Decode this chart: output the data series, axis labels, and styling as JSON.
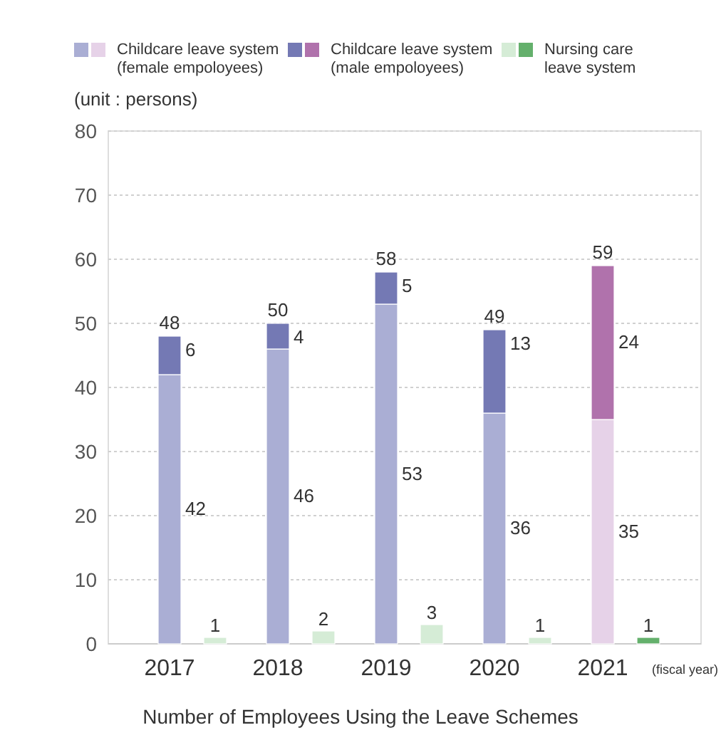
{
  "chart_data": {
    "type": "bar",
    "title": "Number of Employees Using the Leave Schemes",
    "ylabel": "(unit : persons)",
    "xlabel": "(fiscal year)",
    "categories": [
      "2017",
      null,
      "2018",
      null,
      "2019",
      null,
      "2020",
      null,
      "2021",
      null
    ],
    "stacked": true,
    "series": [
      {
        "name": "Childcare leave system\n(female empoloyees)",
        "colors": [
          "#aaaed4",
          null,
          "#aaaed4",
          null,
          "#aaaed4",
          null,
          "#aaaed4",
          null,
          "#e6d2e8",
          null
        ],
        "values": [
          42,
          null,
          46,
          null,
          53,
          null,
          36,
          null,
          35,
          null
        ]
      },
      {
        "name": "Childcare leave system\n(male empoloyees)",
        "colors": [
          "#7479b4",
          null,
          "#7479b4",
          null,
          "#7479b4",
          null,
          "#7479b4",
          null,
          "#b072ac",
          null
        ],
        "values": [
          6,
          null,
          4,
          null,
          5,
          null,
          13,
          null,
          24,
          null
        ]
      },
      {
        "name": "Nursing care\nleave system",
        "colors": [
          null,
          "#d5ecd6",
          null,
          "#d5ecd6",
          null,
          "#d5ecd6",
          null,
          "#d5ecd6",
          null,
          "#64b06c"
        ],
        "values": [
          null,
          1,
          null,
          2,
          null,
          3,
          null,
          1,
          null,
          1
        ]
      }
    ],
    "totals": [
      "48",
      null,
      "50",
      null,
      "58",
      null,
      "49",
      null,
      "59",
      null
    ],
    "data_labels": true,
    "ylim": [
      0,
      80
    ],
    "yticks": [
      0,
      10,
      20,
      30,
      40,
      50,
      60,
      70,
      80
    ],
    "grid": "y",
    "legend": "top"
  }
}
